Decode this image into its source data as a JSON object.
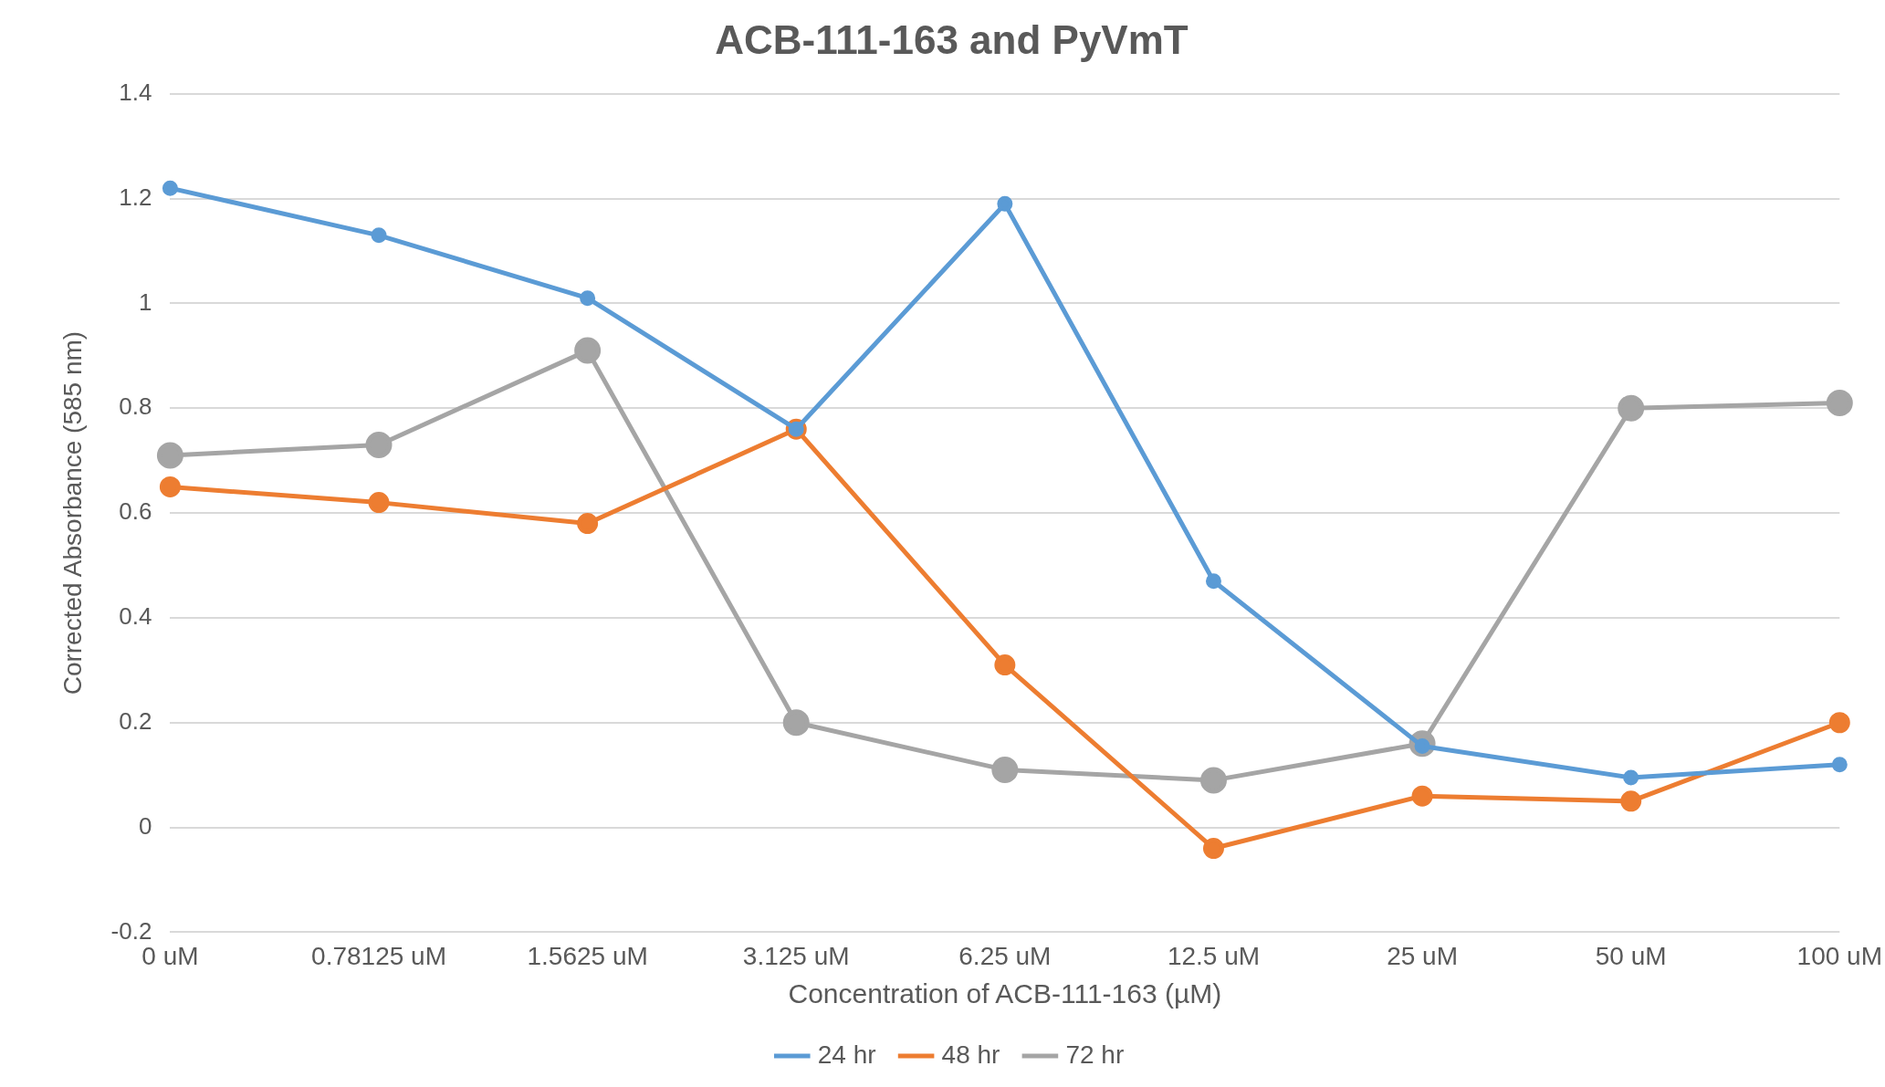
{
  "chart_data": {
    "type": "line",
    "title": "ACB-111-163 and PyVmT",
    "xlabel": "Concentration of ACB-111-163 (µM)",
    "ylabel": "Corrected Absorbance (585 nm)",
    "categories": [
      "0 uM",
      "0.78125 uM",
      "1.5625 uM",
      "3.125 uM",
      "6.25 uM",
      "12.5 uM",
      "25 uM",
      "50 uM",
      "100 uM"
    ],
    "series": [
      {
        "name": "24 hr",
        "color": "#5b9bd5",
        "values": [
          1.22,
          1.13,
          1.01,
          0.76,
          1.19,
          0.47,
          0.155,
          0.095,
          0.12
        ]
      },
      {
        "name": "48 hr",
        "color": "#ed7d31",
        "values": [
          0.65,
          0.62,
          0.58,
          0.76,
          0.31,
          -0.04,
          0.06,
          0.05,
          0.2
        ]
      },
      {
        "name": "72 hr",
        "color": "#a5a5a5",
        "values": [
          0.71,
          0.73,
          0.91,
          0.2,
          0.11,
          0.09,
          0.16,
          0.8,
          0.81
        ]
      }
    ],
    "ylim": [
      -0.2,
      1.4
    ],
    "yticks": [
      -0.2,
      0,
      0.2,
      0.4,
      0.6,
      0.8,
      1,
      1.2,
      1.4
    ],
    "grid": "y",
    "legend": "bottom",
    "marker": "circle",
    "line_style": "solid"
  }
}
